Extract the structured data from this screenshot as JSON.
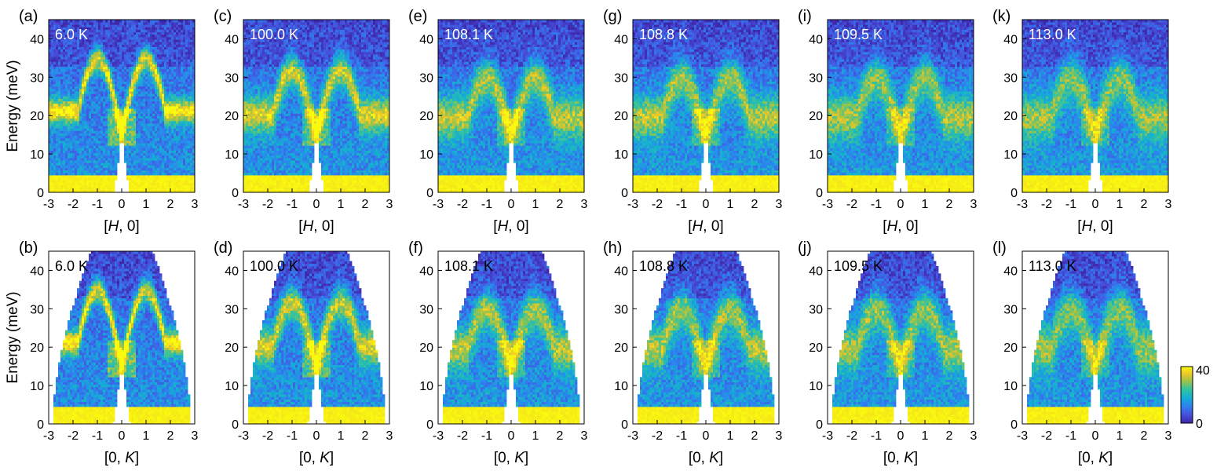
{
  "colors": {
    "background_heat": "#3a2fb5",
    "low": "#3e26a8",
    "high": "#f9fb0e",
    "temp_label_dark_bg": "#ffffff",
    "temp_label_light_bg": "#000000"
  },
  "chart_data": [
    {
      "panel": "(a)",
      "type": "heatmap",
      "temperature": "6.0 K",
      "xlabel_prefix": "[",
      "xlabel_var": "H",
      "xlabel_suffix": ", 0]",
      "ylabel": "Energy (meV)",
      "xlim": [
        -3,
        3
      ],
      "ylim": [
        0,
        45
      ],
      "geometry": "rect",
      "gap_half_width": 0.3,
      "gap_top_energy": 15,
      "dispersion_peak": 35,
      "peak_k": 1.0,
      "intensity_level": 1.0
    },
    {
      "panel": "(b)",
      "type": "heatmap",
      "temperature": "6.0 K",
      "xlabel_prefix": "[0, ",
      "xlabel_var": "K",
      "xlabel_suffix": "]",
      "ylabel": "Energy (meV)",
      "xlim": [
        -3,
        3
      ],
      "ylim": [
        0,
        45
      ],
      "geometry": "fan",
      "gap_half_width": 0.35,
      "gap_top_energy": 15,
      "dispersion_peak": 35,
      "peak_k": 1.0,
      "intensity_level": 1.0
    },
    {
      "panel": "(c)",
      "type": "heatmap",
      "temperature": "100.0 K",
      "xlabel_prefix": "[",
      "xlabel_var": "H",
      "xlabel_suffix": ", 0]",
      "ylabel": "",
      "xlim": [
        -3,
        3
      ],
      "ylim": [
        0,
        45
      ],
      "geometry": "rect",
      "gap_half_width": 0.3,
      "gap_top_energy": 15,
      "dispersion_peak": 32,
      "peak_k": 1.0,
      "intensity_level": 0.75
    },
    {
      "panel": "(d)",
      "type": "heatmap",
      "temperature": "100.0 K",
      "xlabel_prefix": "[0, ",
      "xlabel_var": "K",
      "xlabel_suffix": "]",
      "ylabel": "",
      "xlim": [
        -3,
        3
      ],
      "ylim": [
        0,
        45
      ],
      "geometry": "fan",
      "gap_half_width": 0.35,
      "gap_top_energy": 15,
      "dispersion_peak": 32,
      "peak_k": 1.0,
      "intensity_level": 0.75
    },
    {
      "panel": "(e)",
      "type": "heatmap",
      "temperature": "108.1 K",
      "xlabel_prefix": "[",
      "xlabel_var": "H",
      "xlabel_suffix": ", 0]",
      "ylabel": "",
      "xlim": [
        -3,
        3
      ],
      "ylim": [
        0,
        45
      ],
      "geometry": "rect",
      "gap_half_width": 0.3,
      "gap_top_energy": 15,
      "dispersion_peak": 30,
      "peak_k": 1.0,
      "intensity_level": 0.62
    },
    {
      "panel": "(f)",
      "type": "heatmap",
      "temperature": "108.1 K",
      "xlabel_prefix": "[0, ",
      "xlabel_var": "K",
      "xlabel_suffix": "]",
      "ylabel": "",
      "xlim": [
        -3,
        3
      ],
      "ylim": [
        0,
        45
      ],
      "geometry": "fan",
      "gap_half_width": 0.35,
      "gap_top_energy": 15,
      "dispersion_peak": 30,
      "peak_k": 1.0,
      "intensity_level": 0.62
    },
    {
      "panel": "(g)",
      "type": "heatmap",
      "temperature": "108.8 K",
      "xlabel_prefix": "[",
      "xlabel_var": "H",
      "xlabel_suffix": ", 0]",
      "ylabel": "",
      "xlim": [
        -3,
        3
      ],
      "ylim": [
        0,
        45
      ],
      "geometry": "rect",
      "gap_half_width": 0.3,
      "gap_top_energy": 15,
      "dispersion_peak": 30,
      "peak_k": 1.0,
      "intensity_level": 0.58
    },
    {
      "panel": "(h)",
      "type": "heatmap",
      "temperature": "108.8 K",
      "xlabel_prefix": "[0, ",
      "xlabel_var": "K",
      "xlabel_suffix": "]",
      "ylabel": "",
      "xlim": [
        -3,
        3
      ],
      "ylim": [
        0,
        45
      ],
      "geometry": "fan",
      "gap_half_width": 0.35,
      "gap_top_energy": 15,
      "dispersion_peak": 30,
      "peak_k": 1.0,
      "intensity_level": 0.58
    },
    {
      "panel": "(i)",
      "type": "heatmap",
      "temperature": "109.5 K",
      "xlabel_prefix": "[",
      "xlabel_var": "H",
      "xlabel_suffix": ", 0]",
      "ylabel": "",
      "xlim": [
        -3,
        3
      ],
      "ylim": [
        0,
        45
      ],
      "geometry": "rect",
      "gap_half_width": 0.3,
      "gap_top_energy": 15,
      "dispersion_peak": 30,
      "peak_k": 1.0,
      "intensity_level": 0.55
    },
    {
      "panel": "(j)",
      "type": "heatmap",
      "temperature": "109.5 K",
      "xlabel_prefix": "[0, ",
      "xlabel_var": "K",
      "xlabel_suffix": "]",
      "ylabel": "",
      "xlim": [
        -3,
        3
      ],
      "ylim": [
        0,
        45
      ],
      "geometry": "fan",
      "gap_half_width": 0.35,
      "gap_top_energy": 15,
      "dispersion_peak": 30,
      "peak_k": 1.0,
      "intensity_level": 0.55
    },
    {
      "panel": "(k)",
      "type": "heatmap",
      "temperature": "113.0 K",
      "xlabel_prefix": "[",
      "xlabel_var": "H",
      "xlabel_suffix": ", 0]",
      "ylabel": "",
      "xlim": [
        -3,
        3
      ],
      "ylim": [
        0,
        45
      ],
      "geometry": "rect",
      "gap_half_width": 0.3,
      "gap_top_energy": 15,
      "dispersion_peak": 30,
      "peak_k": 1.0,
      "intensity_level": 0.5
    },
    {
      "panel": "(l)",
      "type": "heatmap",
      "temperature": "113.0 K",
      "xlabel_prefix": "[0, ",
      "xlabel_var": "K",
      "xlabel_suffix": "]",
      "ylabel": "",
      "xlim": [
        -3,
        3
      ],
      "ylim": [
        0,
        45
      ],
      "geometry": "fan",
      "gap_half_width": 0.35,
      "gap_top_energy": 15,
      "dispersion_peak": 30,
      "peak_k": 1.0,
      "intensity_level": 0.5
    }
  ],
  "axes": {
    "x_ticks": [
      -3,
      -2,
      -1,
      0,
      1,
      2,
      3
    ],
    "y_ticks": [
      0,
      10,
      20,
      30,
      40
    ]
  },
  "colorbar": {
    "min": 0,
    "max": 40,
    "min_label": "0",
    "max_label": "40"
  }
}
